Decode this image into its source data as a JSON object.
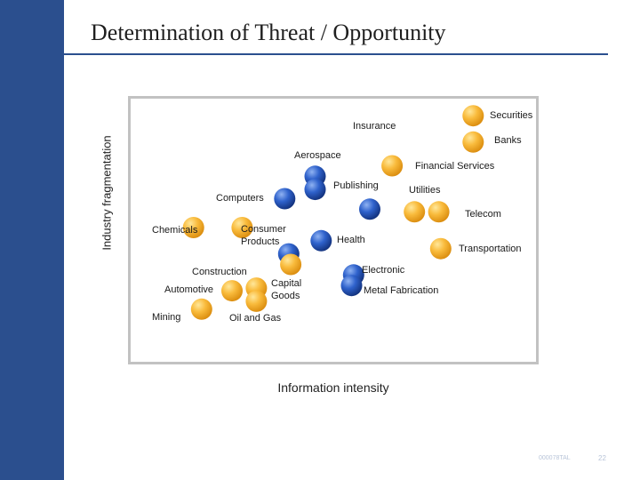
{
  "slide": {
    "title": "Determination of Threat / Opportunity",
    "footer_code": "000078TAL",
    "page_number": "22"
  },
  "colors": {
    "side_bar": "#2b4f8e",
    "orange_bubble": "#f5a623",
    "blue_bubble": "#1f4fb8"
  },
  "chart_data": {
    "type": "scatter",
    "title": "",
    "xlabel": "Information intensity",
    "ylabel": "Industry fragmentation",
    "xlim": [
      0,
      100
    ],
    "ylim": [
      0,
      100
    ],
    "grid": false,
    "legend": "none",
    "points": [
      {
        "label": "Securities",
        "x": 84.5,
        "y": 93.5,
        "color": "orange"
      },
      {
        "label": "Insurance",
        "x": 0,
        "y": 0,
        "color": "none"
      },
      {
        "label": "Banks",
        "x": 84.5,
        "y": 83.5,
        "color": "orange"
      },
      {
        "label": "Aerospace",
        "x": 0,
        "y": 0,
        "color": "none"
      },
      {
        "label": "Financial Services",
        "x": 64.5,
        "y": 74.5,
        "color": "orange"
      },
      {
        "label": "",
        "x": 45.5,
        "y": 70.5,
        "color": "blue"
      },
      {
        "label": "Publishing",
        "x": 45.5,
        "y": 65.5,
        "color": "blue"
      },
      {
        "label": "Utilities",
        "x": 0,
        "y": 0,
        "color": "none"
      },
      {
        "label": "Computers",
        "x": 38,
        "y": 62,
        "color": "blue"
      },
      {
        "label": "",
        "x": 59,
        "y": 58,
        "color": "blue"
      },
      {
        "label": "Telecom",
        "x": 70,
        "y": 57,
        "color": "orange"
      },
      {
        "label": "",
        "x": 76,
        "y": 57,
        "color": "orange"
      },
      {
        "label": "Chemicals",
        "x": 15.5,
        "y": 51,
        "color": "orange"
      },
      {
        "label": "Consumer Products",
        "x": 27.5,
        "y": 51,
        "color": "orange"
      },
      {
        "label": "Health",
        "x": 47,
        "y": 46,
        "color": "blue"
      },
      {
        "label": "Transportation",
        "x": 76.5,
        "y": 43,
        "color": "orange"
      },
      {
        "label": "",
        "x": 39,
        "y": 41,
        "color": "blue"
      },
      {
        "label": "",
        "x": 39.5,
        "y": 37,
        "color": "orange"
      },
      {
        "label": "",
        "x": 55,
        "y": 33,
        "color": "blue"
      },
      {
        "label": "Electronic",
        "x": 0,
        "y": 0,
        "color": "none"
      },
      {
        "label": "Construction",
        "x": 0,
        "y": 0,
        "color": "none"
      },
      {
        "label": "Capital Goods",
        "x": 31,
        "y": 28,
        "color": "orange"
      },
      {
        "label": "Automotive",
        "x": 25,
        "y": 27,
        "color": "orange"
      },
      {
        "label": "",
        "x": 54.5,
        "y": 29,
        "color": "blue"
      },
      {
        "label": "Metal Fabrication",
        "x": 0,
        "y": 0,
        "color": "none"
      },
      {
        "label": "",
        "x": 31,
        "y": 23,
        "color": "orange"
      },
      {
        "label": "Mining",
        "x": 17.5,
        "y": 20,
        "color": "orange"
      },
      {
        "label": "Oil and Gas",
        "x": 0,
        "y": 0,
        "color": "none"
      }
    ]
  }
}
